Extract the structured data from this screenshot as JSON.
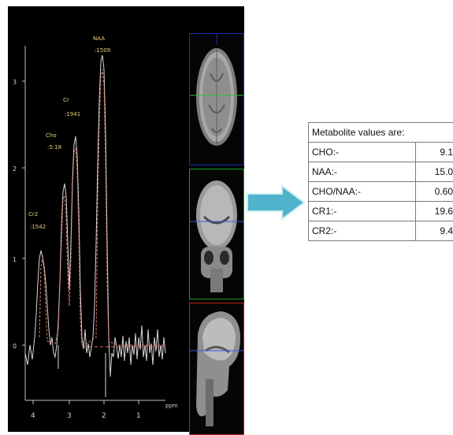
{
  "spectrum": {
    "peaks": [
      {
        "name": "NAA",
        "value": ":1509"
      },
      {
        "name": "Cr",
        "value": ":1941"
      },
      {
        "name": "Cho",
        "value": ":5:18"
      },
      {
        "name": "Cr2",
        "value": ":1542"
      }
    ],
    "y_ticks": [
      "3",
      "2",
      "1",
      "0"
    ],
    "x_ticks": [
      "4",
      "3",
      "2",
      "1"
    ],
    "x_unit": "ppm",
    "colors": {
      "baseline": "#d8d8d8",
      "fit": "#e07a6a",
      "labels": "#e8d27a"
    }
  },
  "mri": {
    "views": [
      "axial",
      "coronal",
      "sagittal"
    ],
    "colors": {
      "axial": "#1a2fb8",
      "coronal": "#17a22c",
      "sagittal": "#c02222"
    }
  },
  "arrow": {
    "icon": "arrow-right-icon",
    "color": "#4fb3cc"
  },
  "table": {
    "title": "Metabolite values are:",
    "rows": [
      {
        "label": "CHO:-",
        "value": "9.1"
      },
      {
        "label": "NAA:-",
        "value": "15.0"
      },
      {
        "label": "CHO/NAA:-",
        "value": "0.60"
      },
      {
        "label": "CR1:-",
        "value": "19.6"
      },
      {
        "label": "CR2:-",
        "value": "9.4"
      }
    ]
  }
}
